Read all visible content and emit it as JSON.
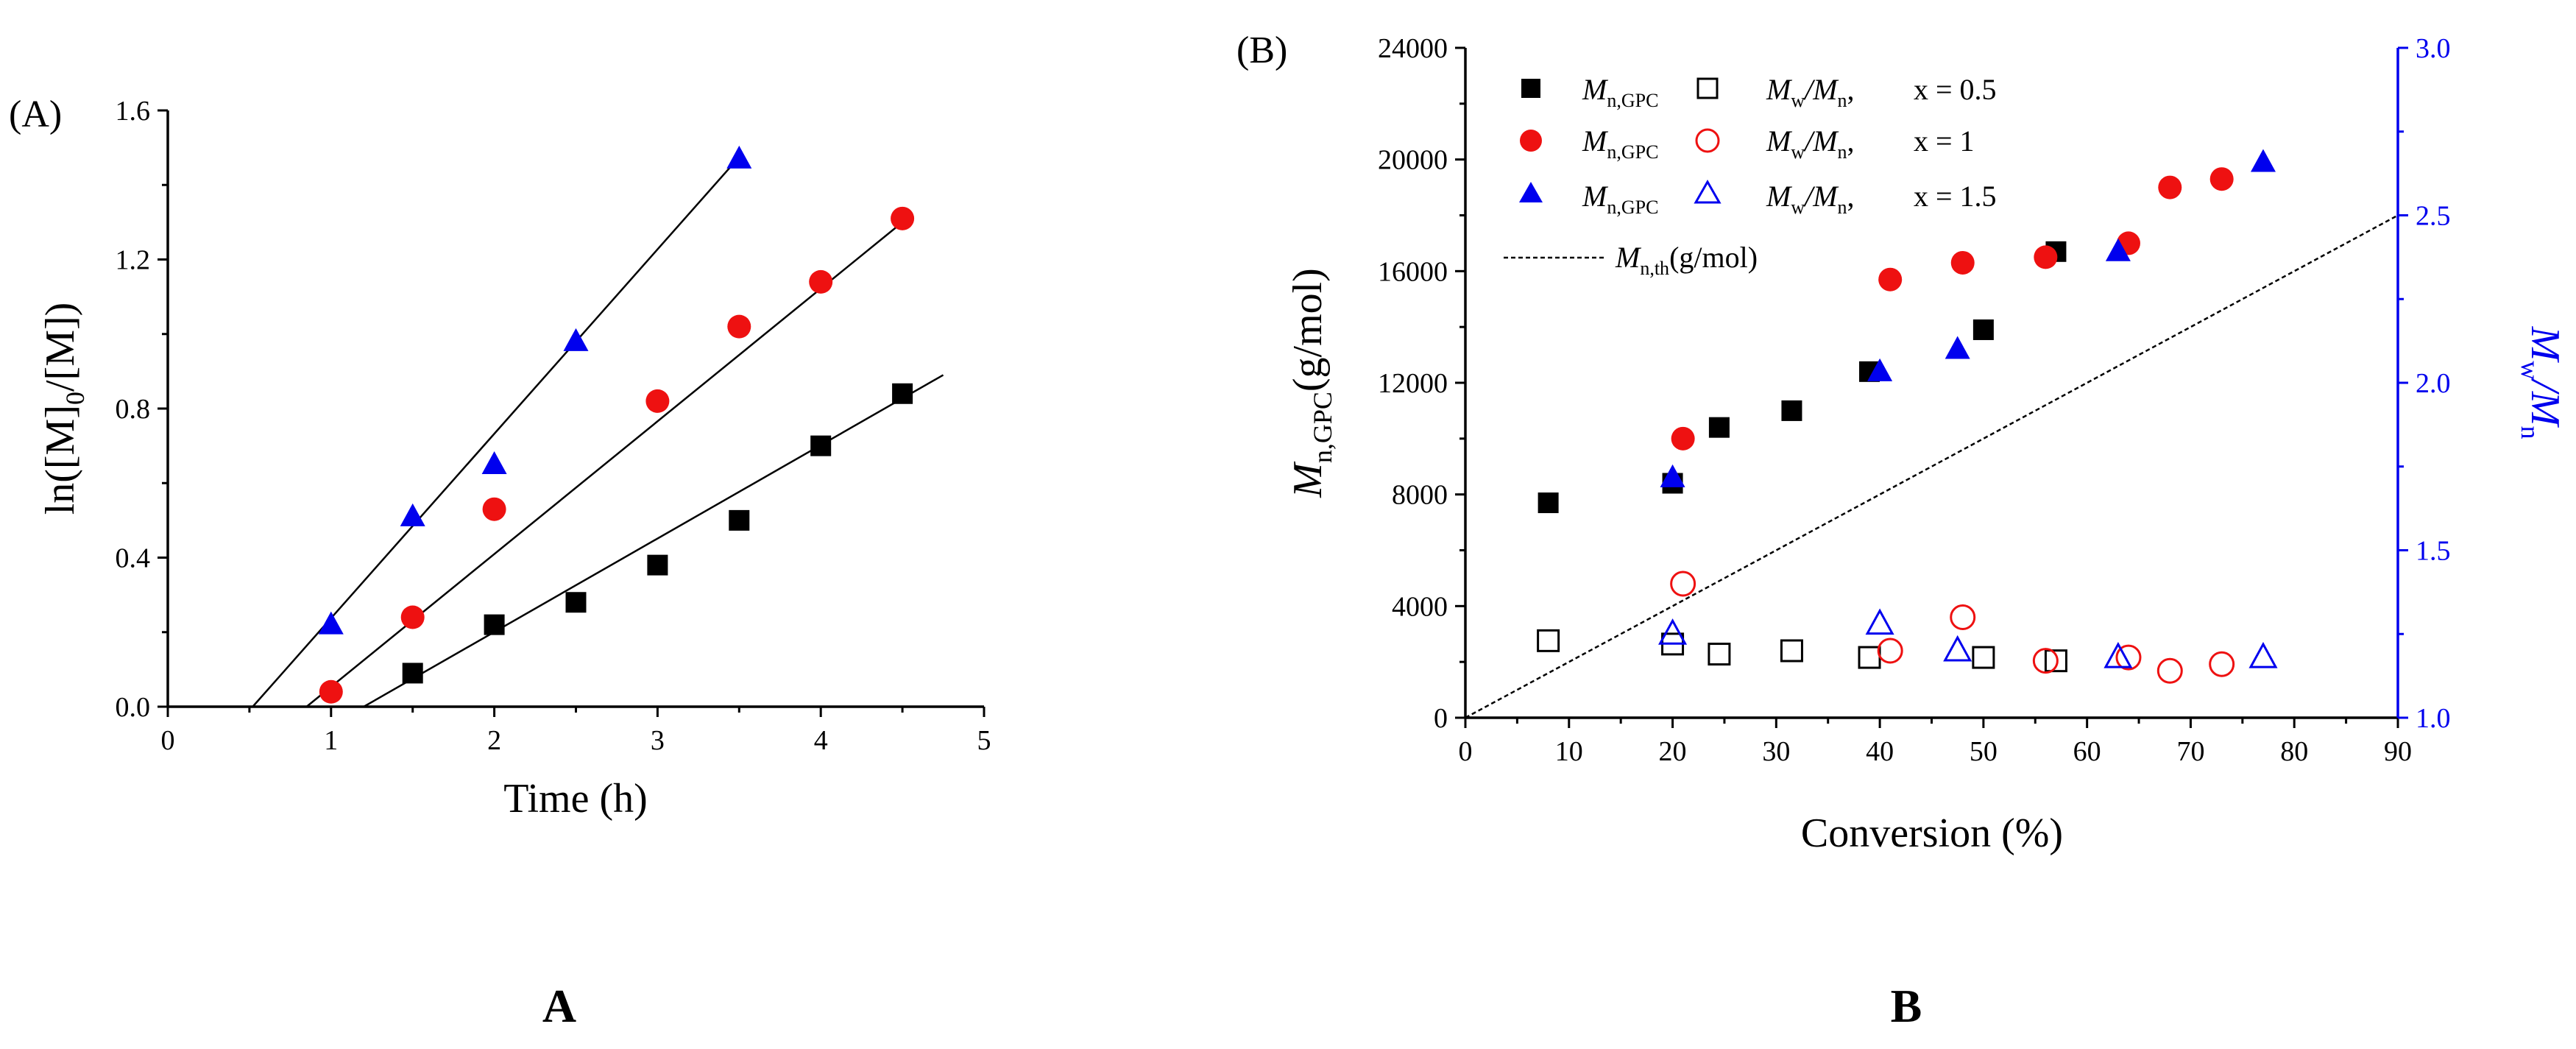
{
  "colors": {
    "s05": "#000000",
    "s1": "#ee1111",
    "s15": "#0000ee",
    "fit": "#000000",
    "theory": "#000000",
    "right_axis": "#0000ee"
  },
  "chart_data": [
    {
      "type": "scatter",
      "panel_label": "(A)",
      "caption": "A",
      "xlabel": "Time (h)",
      "ylabel": {
        "pre": "ln([M]",
        "sub": "0",
        "post": "/[M])"
      },
      "xlim": [
        0,
        5
      ],
      "ylim": [
        0,
        1.6
      ],
      "xticks": [
        "0",
        "1",
        "2",
        "3",
        "4",
        "5"
      ],
      "yticks": [
        "0.0",
        "0.4",
        "0.8",
        "1.2",
        "1.6"
      ],
      "series": [
        {
          "name": "x = 0.5",
          "marker": "square",
          "color_key": "s05",
          "x": [
            1.5,
            2.0,
            2.5,
            3.0,
            3.5,
            4.0,
            4.5
          ],
          "y": [
            0.09,
            0.22,
            0.28,
            0.38,
            0.5,
            0.7,
            0.84
          ],
          "fit": {
            "x0": 1.2,
            "x1": 4.75,
            "y0": 0.0,
            "y1": 0.89
          }
        },
        {
          "name": "x = 1",
          "marker": "circle",
          "color_key": "s1",
          "x": [
            1.0,
            1.5,
            2.0,
            3.0,
            3.5,
            4.0,
            4.5
          ],
          "y": [
            0.04,
            0.24,
            0.53,
            0.82,
            1.02,
            1.14,
            1.31
          ],
          "fit": {
            "x0": 0.85,
            "x1": 4.5,
            "y0": 0.0,
            "y1": 1.3
          }
        },
        {
          "name": "x = 1.5",
          "marker": "triangle",
          "color_key": "s15",
          "x": [
            1.0,
            1.5,
            2.0,
            2.5,
            3.5
          ],
          "y": [
            0.22,
            0.51,
            0.65,
            0.98,
            1.47
          ],
          "fit": {
            "x0": 0.52,
            "x1": 3.45,
            "y0": 0.0,
            "y1": 1.45
          }
        }
      ]
    },
    {
      "type": "scatter",
      "panel_label": "(B)",
      "caption": "B",
      "xlabel": "Conversion (%)",
      "ylabel": {
        "pre": "M",
        "sub": "n,GPC",
        "post": "(g/mol)"
      },
      "y2label": {
        "a": "M",
        "a_sub": "w",
        "b": "/M",
        "b_sub": "n"
      },
      "xlim": [
        0,
        90
      ],
      "ylim": [
        0,
        24000
      ],
      "y2lim": [
        1.0,
        3.0
      ],
      "xticks": [
        "0",
        "10",
        "20",
        "30",
        "40",
        "50",
        "60",
        "70",
        "80",
        "90"
      ],
      "yticks": [
        "0",
        "4000",
        "8000",
        "12000",
        "16000",
        "20000",
        "24000"
      ],
      "y2ticks": [
        "1.0",
        "1.5",
        "2.0",
        "2.5",
        "3.0"
      ],
      "theory_line": {
        "label_main": "M",
        "label_sub": "n,th",
        "label_unit": "(g/mol)",
        "x": [
          0,
          90
        ],
        "y": [
          0,
          18000
        ]
      },
      "legend": {
        "mn_main": "M",
        "mn_sub": "n,GPC",
        "pdi_a": "M",
        "pdi_a_sub": "w",
        "pdi_b": "/M",
        "pdi_b_sub": "n",
        "rows": [
          "x = 0.5",
          "x = 1",
          "x = 1.5"
        ]
      },
      "series": [
        {
          "name": "Mn,GPC x = 0.5",
          "marker": "square",
          "filled": true,
          "axis": "left",
          "color_key": "s05",
          "x": [
            8,
            20,
            24.5,
            31.5,
            39,
            50,
            57
          ],
          "y": [
            7700,
            8400,
            10400,
            11000,
            12400,
            13900,
            16700
          ]
        },
        {
          "name": "Mn,GPC x = 1",
          "marker": "circle",
          "filled": true,
          "axis": "left",
          "color_key": "s1",
          "x": [
            21,
            41,
            48,
            56,
            64,
            68,
            73
          ],
          "y": [
            10000,
            15700,
            16300,
            16500,
            17000,
            19000,
            19300
          ]
        },
        {
          "name": "Mn,GPC x = 1.5",
          "marker": "triangle",
          "filled": true,
          "axis": "left",
          "color_key": "s15",
          "x": [
            20,
            40,
            47.5,
            63,
            77
          ],
          "y": [
            8600,
            12400,
            13200,
            16700,
            19900
          ]
        },
        {
          "name": "Mw/Mn x = 0.5",
          "marker": "square",
          "filled": false,
          "axis": "right",
          "color_key": "s05",
          "x": [
            8,
            20,
            24.5,
            31.5,
            39,
            50,
            57
          ],
          "y": [
            1.23,
            1.22,
            1.19,
            1.2,
            1.18,
            1.18,
            1.17
          ]
        },
        {
          "name": "Mw/Mn x = 1",
          "marker": "circle",
          "filled": false,
          "axis": "right",
          "color_key": "s1",
          "x": [
            21,
            41,
            48,
            56,
            64,
            68,
            73
          ],
          "y": [
            1.4,
            1.2,
            1.3,
            1.17,
            1.18,
            1.14,
            1.16
          ]
        },
        {
          "name": "Mw/Mn x = 1.5",
          "marker": "triangle",
          "filled": false,
          "axis": "right",
          "color_key": "s15",
          "x": [
            20,
            40,
            47.5,
            63,
            77
          ],
          "y": [
            1.25,
            1.28,
            1.2,
            1.18,
            1.18
          ]
        }
      ]
    }
  ]
}
